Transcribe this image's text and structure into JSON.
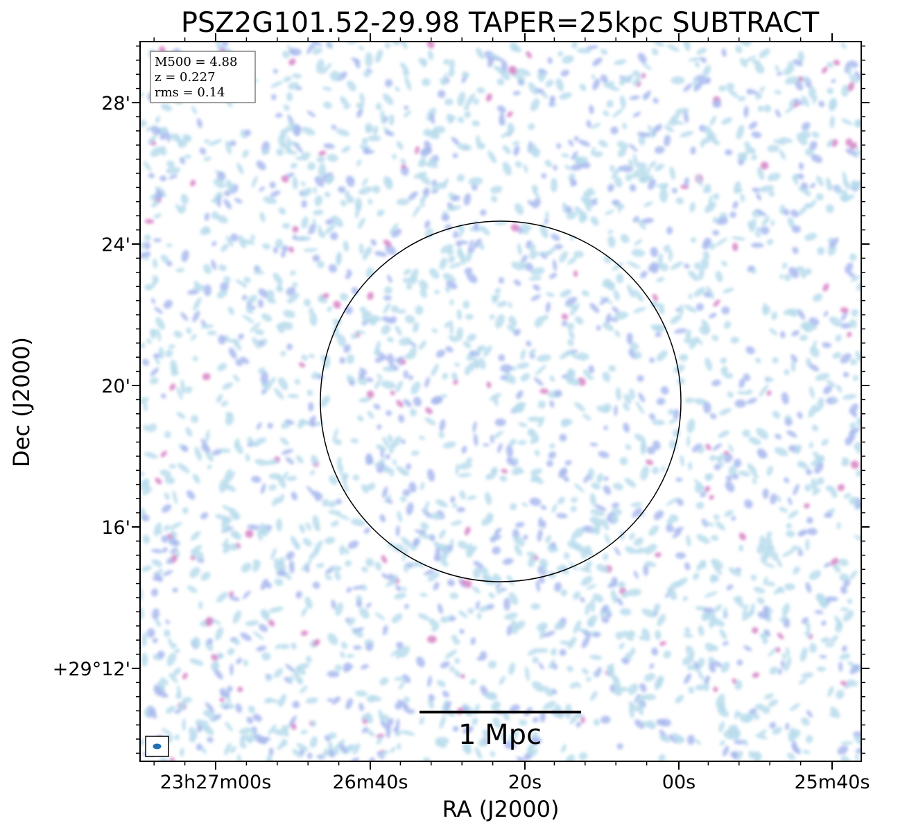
{
  "title": "PSZ2G101.52-29.98 TAPER=25kpc SUBTRACT",
  "axes": {
    "xlabel": "RA (J2000)",
    "ylabel": "Dec (J2000)",
    "x_ticks": [
      "23h27m00s",
      "26m40s",
      "20s",
      "00s",
      "25m40s"
    ],
    "y_ticks": [
      "28'",
      "24'",
      "20'",
      "16'",
      "+29°12'"
    ]
  },
  "info_box": {
    "lines": [
      "M500 = 4.88",
      "z = 0.227",
      "rms = 0.14"
    ]
  },
  "scale_bar": {
    "label": "1 Mpc"
  },
  "colors": {
    "noise_light": "#b9dcec",
    "noise_mid": "#a9b8ee",
    "noise_peak": "#d98ac9",
    "beam": "#1f6fb4"
  }
}
